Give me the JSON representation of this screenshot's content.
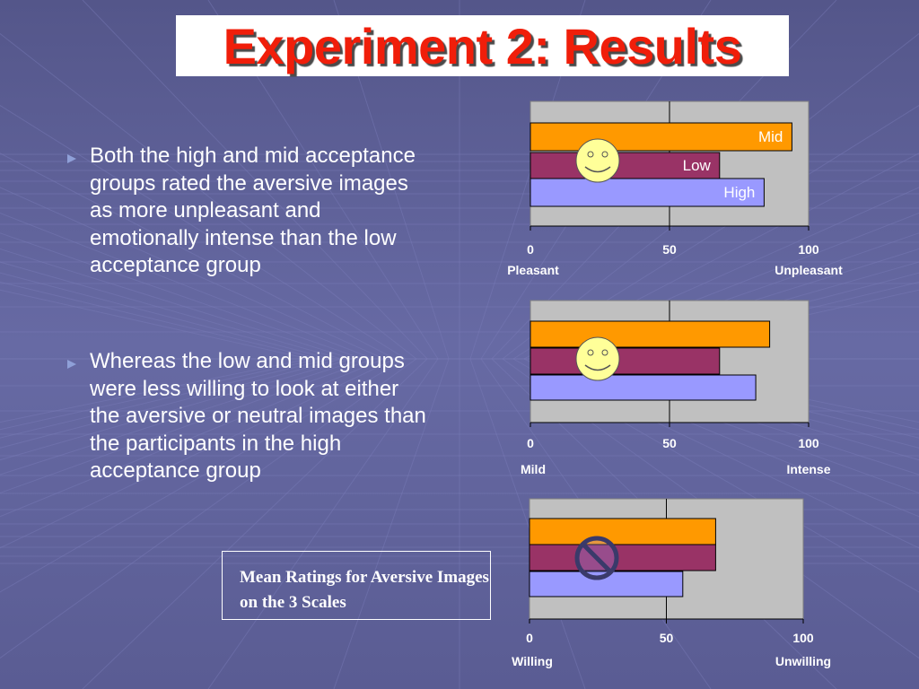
{
  "title": "Experiment 2: Results",
  "bullets": [
    "Both the high and mid acceptance groups rated the aversive images as more unpleasant and emotionally intense than the low acceptance group",
    "Whereas the low and mid groups were less willing to look at either the aversive or neutral images than the participants in the high acceptance group"
  ],
  "caption": "Mean Ratings for Aversive Images on the 3 Scales",
  "colors": {
    "mid": "#ff9900",
    "low": "#993366",
    "high": "#9999ff",
    "plot_bg": "#c0c0c0",
    "title_red": "#f01e0a"
  },
  "chart_data": [
    {
      "type": "bar",
      "orientation": "horizontal",
      "categories": [
        "Mid",
        "Low",
        "High"
      ],
      "values": [
        94,
        68,
        84
      ],
      "xlim": [
        0,
        100
      ],
      "ticks": [
        "0",
        "50",
        "100"
      ],
      "anchor_left": "Pleasant",
      "anchor_right": "Unpleasant",
      "bar_labels": [
        "Mid",
        "Low",
        "High"
      ],
      "icon": "smiley-face-icon"
    },
    {
      "type": "bar",
      "orientation": "horizontal",
      "categories": [
        "Mid",
        "Low",
        "High"
      ],
      "values": [
        86,
        68,
        81
      ],
      "xlim": [
        0,
        100
      ],
      "ticks": [
        "0",
        "50",
        "100"
      ],
      "anchor_left": "Mild",
      "anchor_right": "Intense",
      "bar_labels": [
        "",
        "",
        ""
      ],
      "icon": "smiley-face-icon"
    },
    {
      "type": "bar",
      "orientation": "horizontal",
      "categories": [
        "Mid",
        "Low",
        "High"
      ],
      "values": [
        68,
        68,
        56
      ],
      "xlim": [
        0,
        100
      ],
      "ticks": [
        "0",
        "50",
        "100"
      ],
      "anchor_left": "Willing",
      "anchor_right": "Unwilling",
      "bar_labels": [
        "",
        "",
        ""
      ],
      "icon": "prohibited-icon"
    }
  ]
}
